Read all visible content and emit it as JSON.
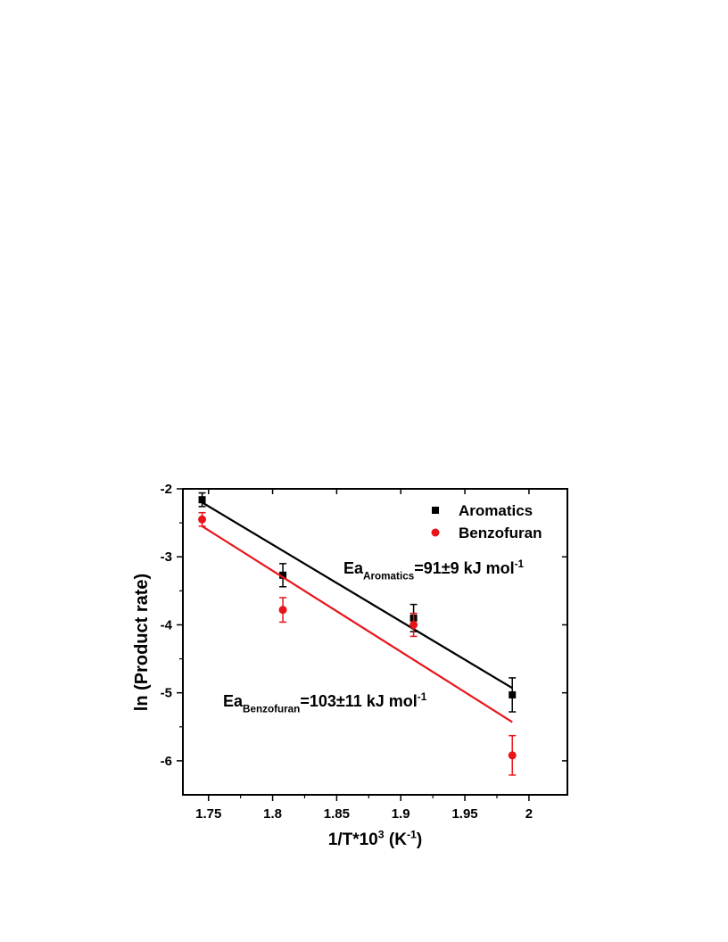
{
  "chart_data": {
    "type": "scatter",
    "x_label": [
      {
        "text": "1/T*10"
      },
      {
        "text": "3",
        "sup": true
      },
      {
        "text": " (K"
      },
      {
        "text": "-1",
        "sup": true
      },
      {
        "text": ")"
      }
    ],
    "y_label": "ln (Product rate)",
    "xlim": [
      1.73,
      2.03
    ],
    "xticks": [
      1.75,
      1.8,
      1.85,
      1.9,
      1.95,
      2.0
    ],
    "ylim": [
      -6.5,
      -2
    ],
    "yticks": [
      -6,
      -5,
      -4,
      -3,
      -2
    ],
    "legend": "top-right",
    "series": [
      {
        "name": "Aromatics",
        "color": "#000000",
        "marker": "square",
        "x": [
          1.745,
          1.808,
          1.91,
          1.987
        ],
        "values": [
          -2.16,
          -3.27,
          -3.9,
          -5.03
        ],
        "errors": [
          0.1,
          0.17,
          0.2,
          0.25
        ],
        "fit": {
          "x": [
            1.745,
            1.987
          ],
          "y": [
            -2.2,
            -4.93
          ]
        }
      },
      {
        "name": "Benzofuran",
        "color": "#e8141a",
        "marker": "circle",
        "x": [
          1.745,
          1.808,
          1.91,
          1.987
        ],
        "values": [
          -2.45,
          -3.78,
          -4.0,
          -5.92
        ],
        "errors": [
          0.1,
          0.18,
          0.17,
          0.29
        ],
        "fit": {
          "x": [
            1.745,
            1.987
          ],
          "y": [
            -2.55,
            -5.43
          ]
        }
      }
    ],
    "annotations": [
      [
        {
          "text": "Ea"
        },
        {
          "text": "Aromatics",
          "sub": true
        },
        {
          "text": "=91±9 kJ mol"
        },
        {
          "text": "-1",
          "sup": true
        }
      ],
      [
        {
          "text": "Ea"
        },
        {
          "text": "Benzofuran",
          "sub": true
        },
        {
          "text": "=103±11 kJ mol"
        },
        {
          "text": "-1",
          "sup": true
        }
      ]
    ]
  }
}
